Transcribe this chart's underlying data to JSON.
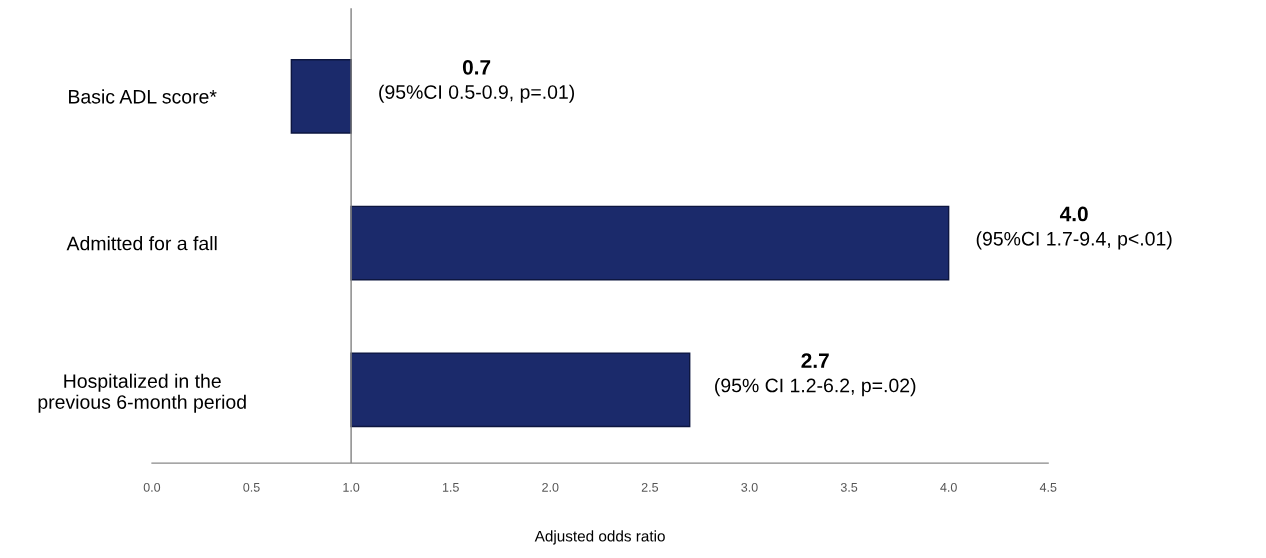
{
  "chart_data": {
    "type": "bar",
    "orientation": "horizontal",
    "xlabel": "Adjusted odds ratio",
    "categories": [
      "Basic ADL score*",
      "Admitted for a fall",
      "Hospitalized in the\nprevious 6-month period"
    ],
    "base": [
      1.0,
      1.0,
      1.0
    ],
    "values": [
      -0.3,
      3.0,
      1.7
    ],
    "color": "#1b2a6b",
    "xlim": [
      0,
      4.5
    ],
    "xticks": [
      {
        "value": 0,
        "label": "0.0"
      },
      {
        "value": 0.5,
        "label": "0.5"
      },
      {
        "value": 1,
        "label": "1.0"
      },
      {
        "value": 1.5,
        "label": "1.5"
      },
      {
        "value": 2,
        "label": "2.0"
      },
      {
        "value": 2.5,
        "label": "2.5"
      },
      {
        "value": 3,
        "label": "3.0"
      },
      {
        "value": 3.5,
        "label": "3.5"
      },
      {
        "value": 4,
        "label": "4.0"
      },
      {
        "value": 4.5,
        "label": "4.5"
      }
    ],
    "ref_lines": [
      {
        "axis": "x",
        "value": 1.0,
        "color": "#808080"
      }
    ],
    "annotations": [
      "0.7",
      "(95%CI 0.5-0.9, p=.01)",
      "4.0",
      "(95%CI 1.7-9.4, p<.01)",
      "2.7",
      "(95% CI 1.2-6.2, p=.02)"
    ],
    "grid": false
  }
}
